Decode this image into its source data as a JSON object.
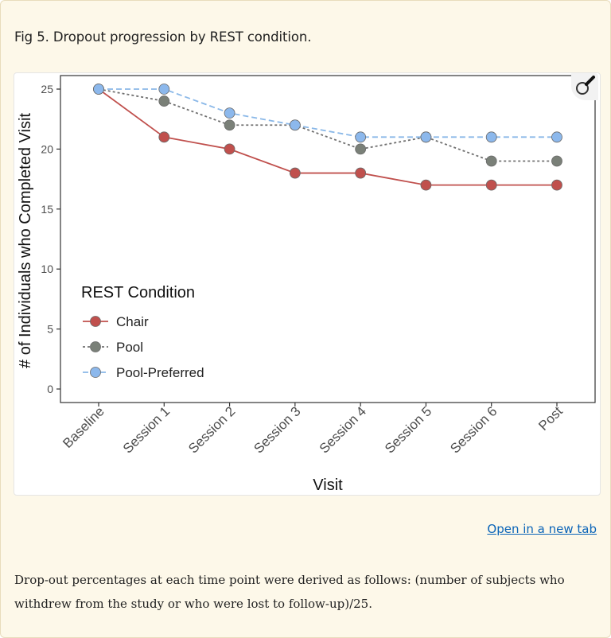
{
  "caption": "Fig 5. Dropout progression by REST condition.",
  "open_link": "Open in a new tab",
  "footnote": "Drop-out percentages at each time point were derived as follows: (number of subjects who withdrew from the study or who were lost to follow-up)/25.",
  "zoom_icon": "magnifier-icon",
  "chart_data": {
    "type": "line",
    "xlabel": "Visit",
    "ylabel": "# of Individuals who Completed Visit",
    "categories": [
      "Baseline",
      "Session 1",
      "Session 2",
      "Session 3",
      "Session 4",
      "Session 5",
      "Session 6",
      "Post"
    ],
    "ylim": [
      0,
      25
    ],
    "yticks": [
      0,
      5,
      10,
      15,
      20,
      25
    ],
    "grid": false,
    "legend": {
      "title": "REST Condition",
      "placement": "left-center"
    },
    "series": [
      {
        "name": "Chair",
        "values": [
          25,
          21,
          20,
          18,
          18,
          17,
          17,
          17
        ],
        "color": "#c0504d",
        "point_fill": "#c0504d",
        "dash": "solid"
      },
      {
        "name": "Pool",
        "values": [
          25,
          24,
          22,
          22,
          20,
          21,
          19,
          19
        ],
        "color": "#707070",
        "point_fill": "#7a8078",
        "dash": "dotted"
      },
      {
        "name": "Pool-Preferred",
        "values": [
          25,
          25,
          23,
          22,
          21,
          21,
          21,
          21
        ],
        "color": "#8ab8e8",
        "point_fill": "#8cb8ec",
        "dash": "dashed"
      }
    ]
  }
}
